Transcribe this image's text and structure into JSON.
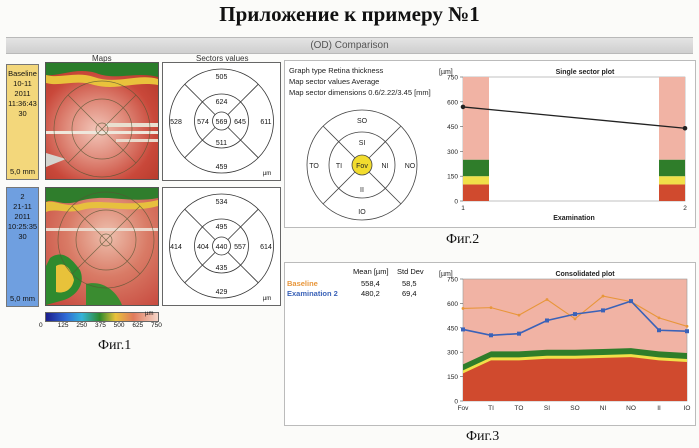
{
  "title": "Приложение к примеру №1",
  "comparison_title": "(OD) Comparison",
  "fig1": {
    "maps_label": "Maps",
    "sectors_label": "Sectors values",
    "exams": [
      {
        "lines": [
          "Baseline",
          "10-11",
          "2011",
          "11:36:43",
          "30"
        ],
        "mm": "5,0 mm",
        "color": "#f3d77b",
        "sectors": {
          "center": "569",
          "inner_top": "624",
          "inner_left": "574",
          "inner_right": "645",
          "inner_bottom": "511",
          "outer_top": "505",
          "outer_left": "528",
          "outer_right": "611",
          "outer_bottom": "459"
        }
      },
      {
        "lines": [
          "2",
          "21-11",
          "2011",
          "10:25:35",
          "30"
        ],
        "mm": "5,0 mm",
        "color": "#6f9fe0",
        "sectors": {
          "center": "440",
          "inner_top": "495",
          "inner_left": "404",
          "inner_right": "557",
          "inner_bottom": "435",
          "outer_top": "534",
          "outer_left": "414",
          "outer_right": "614",
          "outer_bottom": "429"
        }
      }
    ],
    "unit": "µm",
    "scale_ticks": [
      "0",
      "125",
      "250",
      "375",
      "500",
      "625",
      "750"
    ],
    "scale_unit": "µm",
    "caption": "Фиг.1"
  },
  "fig2": {
    "info": [
      "Graph type Retina thickness",
      "Map sector values Average",
      "Map sector dimensions 0.6/2.22/3.45 [mm]"
    ],
    "sectors": {
      "so": "SO",
      "si": "SI",
      "to": "TO",
      "ti": "TI",
      "fov": "Fov",
      "ni": "NI",
      "no": "NO",
      "ii": "II",
      "io": "IO"
    },
    "caption": "Фиг.2",
    "chart_data": {
      "type": "line",
      "title": "Single sector plot",
      "ylabel": "[µm]",
      "xlabel": "Examination",
      "x": [
        1,
        2
      ],
      "values": [
        569,
        440
      ],
      "ylim": [
        0,
        750
      ],
      "yticks": [
        "0",
        "150",
        "300",
        "450",
        "600",
        "750"
      ],
      "xticks": [
        "1",
        "2"
      ],
      "line_color": "#222222"
    }
  },
  "fig3": {
    "stats_header": {
      "mean": "Mean [µm]",
      "std": "Std Dev"
    },
    "rows": [
      {
        "name": "Baseline",
        "mean": "558,4",
        "std": "58,5",
        "color": "#e8963a"
      },
      {
        "name": "Examination 2",
        "mean": "480,2",
        "std": "69,4",
        "color": "#3a62b8"
      }
    ],
    "caption": "Фиг.3",
    "chart_data": {
      "type": "line",
      "title": "Consolidated plot",
      "ylabel": "[µm]",
      "categories": [
        "Fov",
        "TI",
        "TO",
        "SI",
        "SO",
        "NI",
        "NO",
        "II",
        "IO"
      ],
      "series": [
        {
          "name": "Baseline",
          "values": [
            569,
            574,
            528,
            624,
            505,
            645,
            611,
            511,
            459
          ],
          "color": "#e8963a"
        },
        {
          "name": "Examination 2",
          "values": [
            440,
            404,
            414,
            495,
            534,
            557,
            614,
            435,
            429
          ],
          "color": "#3a62b8"
        }
      ],
      "ylim": [
        0,
        750
      ],
      "yticks": [
        "0",
        "150",
        "300",
        "450",
        "600",
        "750"
      ]
    }
  }
}
